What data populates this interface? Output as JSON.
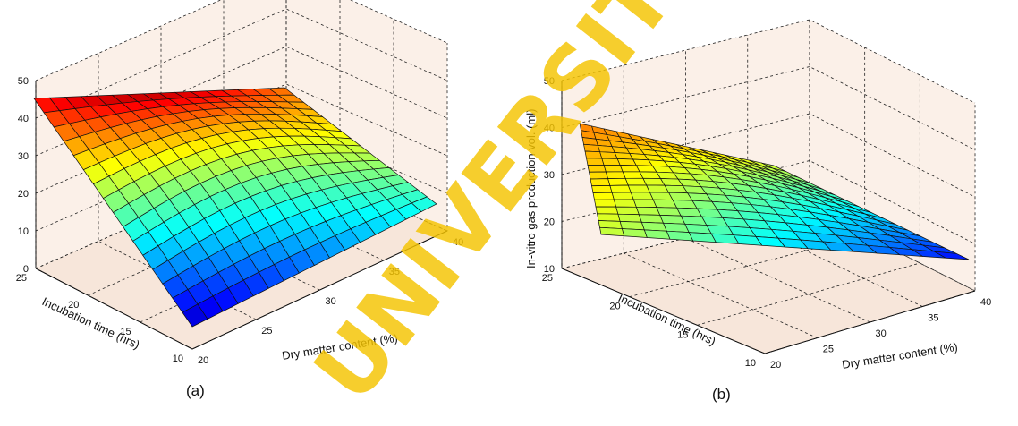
{
  "watermark": "UNIVERSITY OF IBADAN",
  "chart_data": [
    {
      "type": "surface",
      "caption": "(a)",
      "xlabel": "Dry matter content (%)",
      "ylabel": "Incubation time (hrs)",
      "zlabel": "",
      "x_ticks": [
        "20",
        "25",
        "30",
        "35",
        "40"
      ],
      "y_ticks": [
        "10",
        "15",
        "20",
        "25"
      ],
      "z_ticks": [
        "0",
        "10",
        "20",
        "30",
        "40",
        "50"
      ],
      "xlim": [
        20,
        40
      ],
      "ylim": [
        10,
        25
      ],
      "zlim": [
        0,
        50
      ],
      "colormap": "jet",
      "grid": true,
      "surface_corners": {
        "dry20_time10": 3,
        "dry40_time10": 20,
        "dry20_time25": 44,
        "dry40_time25": 38
      },
      "peak_value": 50
    },
    {
      "type": "surface",
      "caption": "(b)",
      "xlabel": "Dry matter content (%)",
      "ylabel": "Incubation time (hrs)",
      "zlabel": "In-vitro gas production vol. (ml)",
      "x_ticks": [
        "20",
        "25",
        "30",
        "35",
        "40"
      ],
      "y_ticks": [
        "10",
        "15",
        "20",
        "25"
      ],
      "z_ticks": [
        "10",
        "20",
        "30",
        "40",
        "50"
      ],
      "xlim": [
        20,
        40
      ],
      "ylim": [
        10,
        25
      ],
      "zlim": [
        10,
        50
      ],
      "colormap": "jet",
      "grid": true,
      "surface_corners": {
        "dry20_time10": 33,
        "dry40_time10": 15,
        "dry20_time25": 40,
        "dry40_time25": 33
      },
      "peak_value": 41
    }
  ]
}
